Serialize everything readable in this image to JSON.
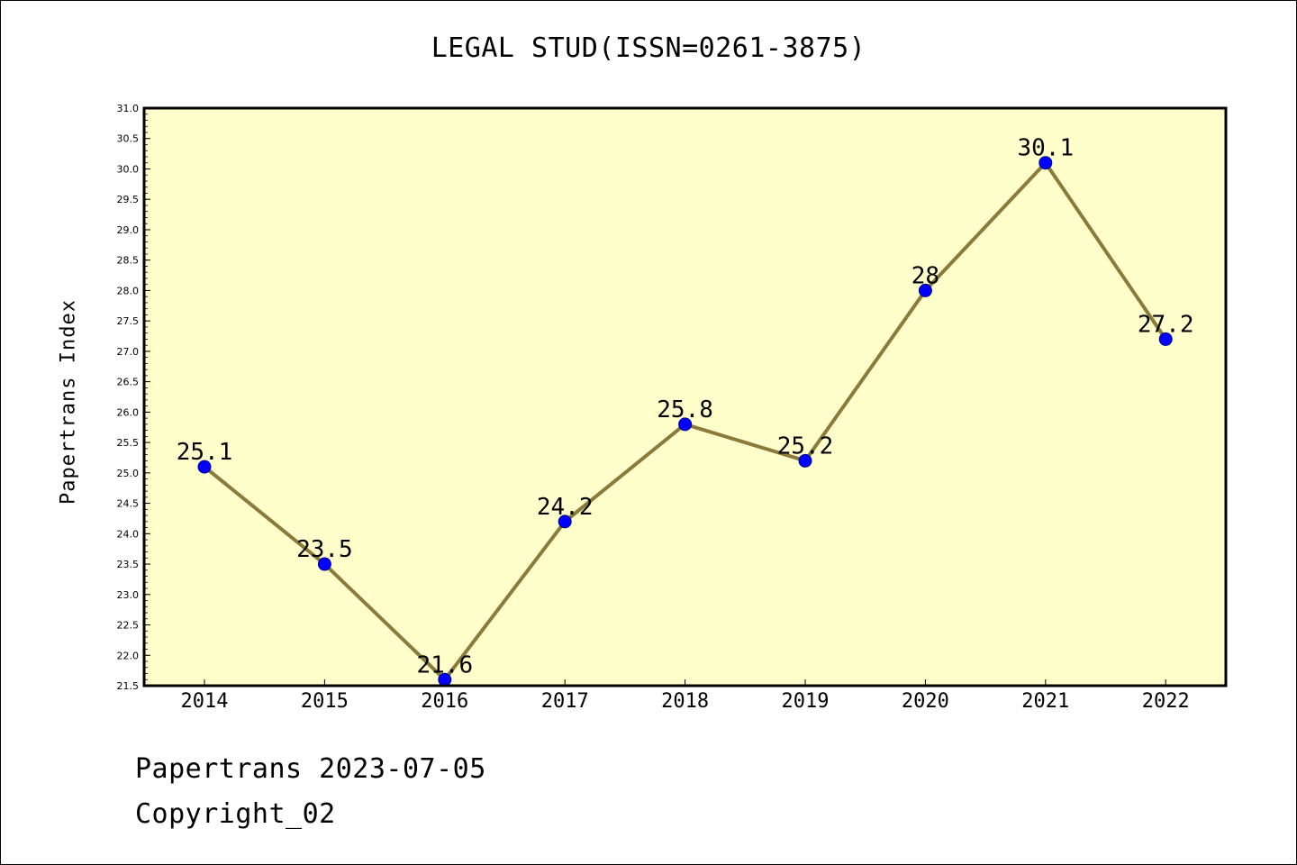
{
  "header": {
    "title": "LEGAL STUD(ISSN=0261-3875)"
  },
  "footer": {
    "line1": "Papertrans 2023-07-05",
    "line2": "Copyright_02"
  },
  "colors": {
    "plot_background": "#ffffcc",
    "line": "#8b7a3a",
    "marker": "#0000ff",
    "axis": "#000000"
  },
  "chart_data": {
    "type": "line",
    "title": "LEGAL STUD(ISSN=0261-3875)",
    "xlabel": "",
    "ylabel": "Papertrans Index",
    "categories": [
      "2014",
      "2015",
      "2016",
      "2017",
      "2018",
      "2019",
      "2020",
      "2021",
      "2022"
    ],
    "series": [
      {
        "values": [
          25.1,
          23.5,
          21.6,
          24.2,
          25.8,
          25.2,
          28,
          30.1,
          27.2
        ],
        "labels": [
          "25.1",
          "23.5",
          "21.6",
          "24.2",
          "25.8",
          "25.2",
          "28",
          "30.1",
          "27.2"
        ]
      }
    ],
    "ylim": [
      21.5,
      31.0
    ],
    "yticks": [
      "21.5",
      "22.0",
      "22.5",
      "23.0",
      "23.5",
      "24.0",
      "24.5",
      "25.0",
      "25.5",
      "26.0",
      "26.5",
      "27.0",
      "27.5",
      "28.0",
      "28.5",
      "29.0",
      "29.5",
      "30.0",
      "30.5",
      "31.0"
    ],
    "grid": false,
    "legend": "none"
  }
}
